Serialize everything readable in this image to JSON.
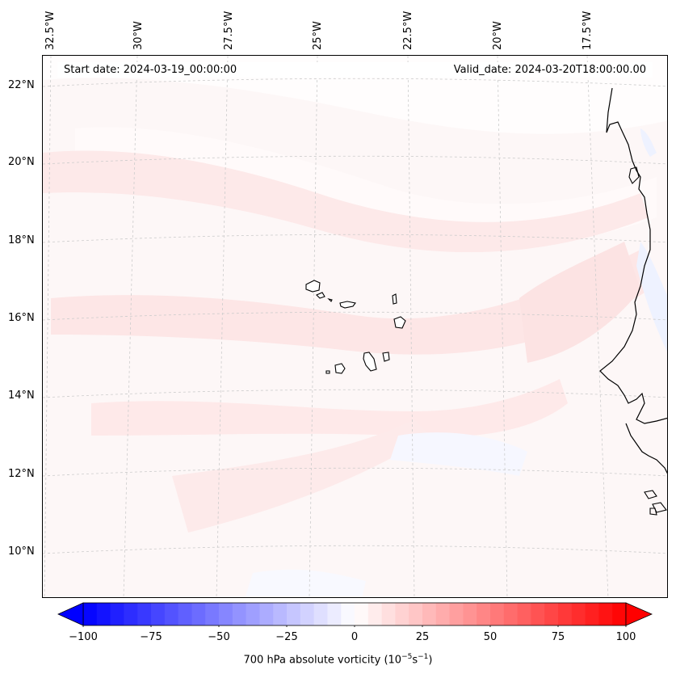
{
  "map": {
    "lon_labels": [
      "32.5°W",
      "30°W",
      "27.5°W",
      "25°W",
      "22.5°W",
      "20°W",
      "17.5°W"
    ],
    "lat_labels": [
      "22°N",
      "20°N",
      "18°N",
      "16°N",
      "14°N",
      "12°N",
      "10°N"
    ],
    "start_date": "Start date: 2024-03-19_00:00:00",
    "valid_date": "Valid_date: 2024-03-20T18:00:00.00",
    "field_colors": {
      "background": "#fdf7f7",
      "light_pink": "#fee8e8",
      "pale_white": "#fffdfd",
      "faint_blue": "#f4f6ff"
    },
    "coastline_color": "#000000",
    "grid_color": "#cccccc"
  },
  "colorbar": {
    "label_text": "700 hPa absolute vorticity (10",
    "label_exp1": "−5",
    "label_unit": "s",
    "label_exp2": "−1",
    "label_close": ")",
    "ticks": [
      "−100",
      "−75",
      "−50",
      "−25",
      "0",
      "25",
      "50",
      "75",
      "100"
    ],
    "min": -100,
    "max": 100,
    "colormap": "bwr"
  }
}
